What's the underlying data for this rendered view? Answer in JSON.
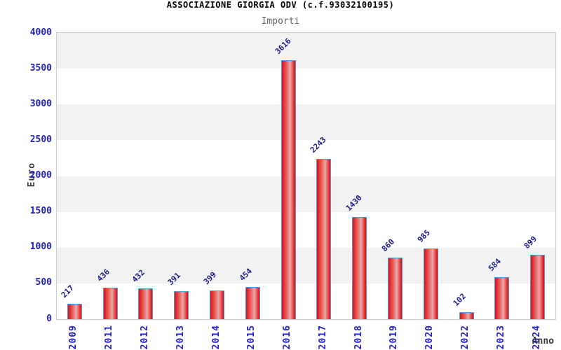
{
  "header": {
    "title": "ASSOCIAZIONE GIORGIA ODV (c.f.93032100195)",
    "subtitle": "Importi"
  },
  "chart_data": {
    "type": "bar",
    "title": "ASSOCIAZIONE GIORGIA ODV (c.f.93032100195)",
    "subtitle": "Importi",
    "xlabel": "Anno",
    "ylabel": "Euro",
    "categories": [
      "2009",
      "2011",
      "2012",
      "2013",
      "2014",
      "2015",
      "2016",
      "2017",
      "2018",
      "2019",
      "2020",
      "2022",
      "2023",
      "2024"
    ],
    "values": [
      217,
      436,
      432,
      391,
      399,
      454,
      3616,
      2243,
      1430,
      860,
      985,
      102,
      584,
      899
    ],
    "ylim": [
      0,
      4000
    ],
    "yticks": [
      0,
      500,
      1000,
      1500,
      2000,
      2500,
      3000,
      3500,
      4000
    ],
    "grid": "alternating-horizontal-bands",
    "legend": "none",
    "colors": {
      "bar_fill_dark": "#dd1111",
      "bar_fill_mid": "#e66060",
      "bar_fill_light": "#eca8a8",
      "bar_border": "#4e9ce0",
      "tick_label": "#2222cc",
      "value_label": "#1b1b8a",
      "band_gray": "#f2f2f2",
      "band_white": "#ffffff",
      "plot_border": "#cccccc",
      "title_color": "#000000",
      "subtitle_color": "#606060",
      "axis_label_color": "#3a3a3a"
    }
  }
}
